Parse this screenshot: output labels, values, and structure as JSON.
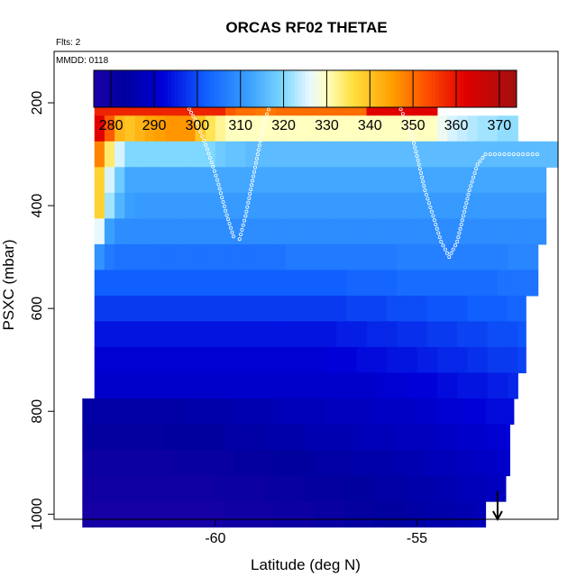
{
  "chart_data": {
    "type": "heatmap",
    "title": "ORCAS RF02 THETAE",
    "annotations": [
      "Flts: 2",
      "MMDD: 0118"
    ],
    "xlabel": "Latitude (deg N)",
    "ylabel": "PSXC (mbar)",
    "xlim": [
      -64,
      -51.5
    ],
    "ylim": [
      1010,
      100
    ],
    "y_reversed": true,
    "x_ticks": [
      -60,
      -55
    ],
    "y_ticks": [
      200,
      400,
      600,
      800,
      1000
    ],
    "colorbar": {
      "min": 276,
      "max": 374,
      "ticks": [
        280,
        290,
        300,
        310,
        320,
        330,
        340,
        350,
        360,
        370
      ],
      "colors": [
        "#1c00a8",
        "#00009e",
        "#0000d8",
        "#1060ff",
        "#3aa0ff",
        "#7fd8ff",
        "#e8f8ff",
        "#ffffc0",
        "#ffe040",
        "#ffa000",
        "#ff5000",
        "#e00000",
        "#a01010"
      ],
      "color_positions": [
        276,
        283,
        292,
        302,
        312,
        320,
        326,
        330,
        336,
        345,
        353,
        362,
        374
      ]
    },
    "pressure_levels": [
      200,
      250,
      300,
      350,
      400,
      450,
      500,
      550,
      600,
      650,
      700,
      750,
      800,
      850,
      900,
      950,
      1000
    ],
    "lat_start": -63.5,
    "lat_step": 0.25,
    "row_extents": [
      [
        -63.0,
        -54.5
      ],
      [
        -63.0,
        -52.5
      ],
      [
        -63.0,
        -51.5
      ],
      [
        -63.0,
        -51.8
      ],
      [
        -63.0,
        -51.8
      ],
      [
        -63.0,
        -51.8
      ],
      [
        -63.0,
        -52.0
      ],
      [
        -63.0,
        -52.0
      ],
      [
        -63.0,
        -52.3
      ],
      [
        -63.0,
        -52.3
      ],
      [
        -63.0,
        -52.3
      ],
      [
        -63.0,
        -52.5
      ],
      [
        -63.3,
        -52.6
      ],
      [
        -63.3,
        -52.7
      ],
      [
        -63.3,
        -52.7
      ],
      [
        -63.3,
        -52.8
      ],
      [
        -63.3,
        -53.3
      ]
    ],
    "row_values": [
      [
        358,
        358,
        358,
        358,
        358,
        358,
        358,
        358,
        358,
        358,
        358,
        358,
        358,
        352,
        350,
        350,
        349,
        349,
        350,
        350,
        350,
        350,
        350,
        350,
        350,
        350,
        350,
        362,
        362,
        362,
        362,
        362,
        362,
        362,
        362,
        362,
        362,
        362,
        362,
        362,
        362,
        362,
        362,
        362,
        362,
        358,
        355,
        352,
        344,
        335
      ],
      [
        362,
        352,
        342,
        340,
        342,
        344,
        345,
        346,
        346,
        346,
        340,
        335,
        332,
        330,
        330,
        330,
        330,
        330,
        330,
        330,
        330,
        330,
        330,
        330,
        330,
        330,
        330,
        330,
        330,
        330,
        330,
        330,
        330,
        330,
        327,
        325,
        324,
        323,
        322,
        322,
        321,
        321,
        320,
        320,
        320,
        320,
        319,
        319,
        319,
        319,
        319,
        319,
        319,
        319,
        319,
        319,
        319,
        319
      ],
      [
        348,
        334,
        325,
        320,
        320,
        320,
        320,
        320,
        320,
        320,
        320,
        320,
        318,
        317,
        317,
        316,
        316,
        316,
        316,
        316,
        316,
        316,
        316,
        316,
        316,
        316,
        316,
        316,
        316,
        316,
        316,
        316,
        316,
        316,
        316,
        316,
        316,
        316,
        316,
        316,
        316,
        316,
        316,
        316,
        316,
        316,
        316,
        316,
        316,
        316,
        316,
        316,
        316,
        316,
        316,
        316,
        316,
        316,
        316,
        316,
        316,
        316
      ],
      [
        338,
        325,
        318,
        313,
        313,
        313,
        313,
        313,
        313,
        313,
        313,
        313,
        313,
        313,
        313,
        313,
        313,
        313,
        313,
        313,
        313,
        313,
        313,
        313,
        313,
        313,
        313,
        313,
        313,
        313,
        313,
        313,
        313,
        313,
        313,
        313,
        313,
        313,
        313,
        313,
        313,
        313,
        313,
        313,
        313,
        313,
        313,
        313,
        313,
        313,
        313,
        313,
        313,
        313,
        313,
        313,
        313,
        313,
        313,
        313,
        313,
        313
      ],
      [
        338,
        322,
        315,
        312,
        311,
        311,
        311,
        311,
        311,
        311,
        311,
        311,
        311,
        311,
        311,
        311,
        311,
        311,
        311,
        311,
        311,
        311,
        311,
        311,
        311,
        311,
        311,
        311,
        311,
        311,
        311,
        311,
        311,
        311,
        311,
        311,
        311,
        311,
        311,
        311,
        311,
        311,
        311,
        311,
        311,
        311,
        311,
        311,
        311,
        311,
        311,
        311,
        311,
        311,
        311,
        311,
        311,
        311,
        311,
        311,
        311
      ],
      [
        326,
        312,
        309,
        309,
        309,
        309,
        309,
        309,
        309,
        309,
        309,
        309,
        309,
        309,
        309,
        309,
        309,
        309,
        309,
        309,
        309,
        309,
        309,
        309,
        309,
        309,
        309,
        309,
        309,
        309,
        309,
        309,
        309,
        309,
        309,
        309,
        309,
        309,
        309,
        309,
        309,
        309,
        309,
        309,
        309,
        309,
        309,
        309,
        309,
        309,
        309,
        309,
        309,
        309,
        309,
        309,
        309,
        309,
        309,
        309,
        309
      ],
      [
        310,
        306,
        305,
        305,
        305,
        305,
        305,
        305,
        305,
        305,
        305,
        305,
        305,
        305,
        305,
        305,
        305,
        305,
        305,
        306,
        306,
        306,
        306,
        306,
        306,
        306,
        306,
        306,
        306,
        306,
        307,
        307,
        307,
        307,
        307,
        307,
        307,
        307,
        307,
        307,
        307,
        308,
        308,
        308,
        308,
        308,
        308,
        308,
        308,
        308,
        309,
        309,
        309,
        309,
        309,
        309,
        309,
        309,
        309,
        309
      ],
      [
        302,
        302,
        302,
        302,
        302,
        302,
        302,
        302,
        302,
        302,
        302,
        302,
        302,
        302,
        302,
        302,
        302,
        302,
        302,
        302,
        302,
        302,
        302,
        302,
        302,
        303,
        303,
        303,
        303,
        303,
        304,
        304,
        304,
        304,
        304,
        304,
        304,
        304,
        304,
        304,
        305,
        305,
        305,
        305,
        305,
        305,
        306,
        306,
        306,
        306,
        306,
        306,
        307,
        307,
        307,
        307,
        307,
        307,
        307,
        307
      ],
      [
        298,
        298,
        298,
        298,
        298,
        298,
        298,
        298,
        298,
        298,
        298,
        298,
        298,
        298,
        298,
        298,
        298,
        298,
        298,
        298,
        298,
        298,
        298,
        298,
        298,
        299,
        299,
        299,
        299,
        300,
        300,
        300,
        300,
        301,
        301,
        301,
        301,
        302,
        302,
        302,
        302,
        303,
        303,
        303,
        303,
        304,
        304,
        304,
        304,
        305,
        305,
        305,
        305,
        305,
        305,
        305,
        305
      ],
      [
        294,
        294,
        294,
        294,
        294,
        294,
        294,
        294,
        294,
        294,
        294,
        294,
        294,
        294,
        294,
        294,
        294,
        294,
        294,
        294,
        294,
        294,
        294,
        294,
        295,
        295,
        295,
        296,
        296,
        296,
        297,
        297,
        297,
        298,
        298,
        298,
        299,
        299,
        299,
        300,
        300,
        300,
        301,
        301,
        301,
        302,
        302,
        302,
        303,
        303,
        303,
        303,
        303,
        303,
        303,
        303,
        303
      ],
      [
        291,
        291,
        291,
        291,
        291,
        291,
        291,
        291,
        291,
        291,
        291,
        291,
        291,
        291,
        291,
        291,
        291,
        291,
        291,
        291,
        291,
        291,
        291,
        292,
        292,
        292,
        293,
        293,
        293,
        294,
        294,
        294,
        295,
        295,
        296,
        296,
        296,
        297,
        297,
        298,
        298,
        298,
        299,
        299,
        300,
        300,
        300,
        301,
        301,
        301,
        302,
        302,
        302,
        302,
        302,
        302,
        302
      ],
      [
        290,
        290,
        290,
        290,
        290,
        290,
        290,
        290,
        290,
        290,
        290,
        290,
        290,
        290,
        290,
        290,
        290,
        290,
        290,
        290,
        290,
        290,
        290,
        290,
        290,
        290,
        290,
        290,
        291,
        291,
        291,
        292,
        292,
        292,
        293,
        293,
        294,
        294,
        294,
        295,
        295,
        296,
        296,
        296,
        297,
        297,
        298,
        298,
        299,
        299,
        300,
        300,
        300,
        300,
        300,
        300
      ],
      [
        284,
        284,
        284,
        284,
        284,
        284,
        284,
        284,
        284,
        284,
        285,
        285,
        285,
        285,
        285,
        286,
        286,
        286,
        286,
        287,
        287,
        287,
        287,
        287,
        288,
        288,
        288,
        288,
        288,
        289,
        289,
        289,
        289,
        290,
        290,
        291,
        291,
        291,
        292,
        292,
        293,
        293,
        293,
        294,
        294,
        295,
        295,
        295,
        296,
        296,
        297,
        297,
        297,
        297,
        297,
        297,
        297
      ],
      [
        282,
        282,
        282,
        282,
        282,
        282,
        282,
        282,
        283,
        283,
        283,
        283,
        283,
        283,
        284,
        284,
        284,
        284,
        285,
        285,
        285,
        285,
        286,
        286,
        286,
        286,
        286,
        287,
        287,
        287,
        287,
        288,
        288,
        288,
        288,
        289,
        289,
        290,
        290,
        290,
        291,
        291,
        292,
        292,
        292,
        293,
        293,
        294,
        294,
        294,
        295,
        295,
        295,
        295,
        295,
        295
      ],
      [
        280,
        280,
        280,
        280,
        280,
        280,
        280,
        280,
        280,
        281,
        281,
        281,
        281,
        281,
        281,
        282,
        282,
        282,
        282,
        283,
        283,
        283,
        283,
        284,
        284,
        284,
        284,
        285,
        285,
        285,
        285,
        286,
        286,
        286,
        287,
        287,
        287,
        288,
        288,
        289,
        289,
        290,
        290,
        290,
        291,
        291,
        292,
        292,
        292,
        293,
        293,
        293,
        293,
        293,
        293,
        293
      ],
      [
        279,
        279,
        279,
        279,
        279,
        279,
        279,
        279,
        279,
        279,
        279,
        279,
        279,
        280,
        280,
        280,
        280,
        280,
        281,
        281,
        281,
        281,
        282,
        282,
        282,
        282,
        283,
        283,
        283,
        284,
        284,
        284,
        285,
        285,
        285,
        286,
        286,
        287,
        287,
        287,
        288,
        288,
        289,
        289,
        289,
        290,
        290,
        291,
        291,
        291,
        291,
        291,
        291,
        291,
        291,
        291
      ],
      [
        278,
        278,
        278,
        278,
        278,
        278,
        278,
        278,
        278,
        278,
        278,
        278,
        278,
        278,
        279,
        279,
        279,
        279,
        279,
        280,
        280,
        280,
        280,
        281,
        281,
        281,
        282,
        282,
        282,
        283,
        283,
        283,
        284,
        284,
        285,
        285,
        285,
        286,
        286,
        287,
        287,
        287,
        288,
        288,
        289,
        289,
        289,
        289,
        289,
        289
      ]
    ],
    "flight_track": [
      [
        -63.2,
        180
      ],
      [
        -62.6,
        180
      ],
      [
        -62.0,
        180
      ],
      [
        -61.4,
        180
      ],
      [
        -61.0,
        185
      ],
      [
        -60.7,
        205
      ],
      [
        -60.45,
        240
      ],
      [
        -60.2,
        290
      ],
      [
        -59.95,
        350
      ],
      [
        -59.75,
        410
      ],
      [
        -59.55,
        460
      ],
      [
        -59.4,
        465
      ],
      [
        -59.25,
        420
      ],
      [
        -59.1,
        360
      ],
      [
        -58.95,
        300
      ],
      [
        -58.8,
        240
      ],
      [
        -58.6,
        195
      ],
      [
        -58.3,
        180
      ],
      [
        -57.6,
        180
      ],
      [
        -56.9,
        180
      ],
      [
        -56.2,
        180
      ],
      [
        -55.7,
        182
      ],
      [
        -55.5,
        195
      ],
      [
        -55.3,
        230
      ],
      [
        -55.1,
        270
      ],
      [
        -54.95,
        320
      ],
      [
        -54.8,
        370
      ],
      [
        -54.6,
        420
      ],
      [
        -54.4,
        470
      ],
      [
        -54.2,
        500
      ],
      [
        -54.0,
        470
      ],
      [
        -53.85,
        420
      ],
      [
        -53.7,
        370
      ],
      [
        -53.5,
        320
      ],
      [
        -53.3,
        300
      ],
      [
        -52.6,
        300
      ],
      [
        -51.9,
        300
      ]
    ],
    "arrow": {
      "lat": -53.0,
      "p_start": 955,
      "p_end": 1010
    }
  }
}
